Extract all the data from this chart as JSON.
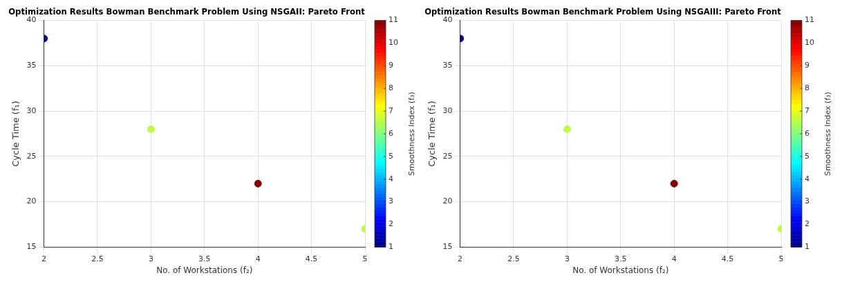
{
  "chart_data": [
    {
      "type": "scatter",
      "title": "Optimization Results Bowman Benchmark Problem Using NSGAII: Pareto Front",
      "xlabel": "No. of Workstations (f₂)",
      "ylabel": "Cycle Time (f₁)",
      "clabel": "Smoothness Index (f₃)",
      "x": [
        2,
        3,
        4,
        5
      ],
      "values": [
        38,
        28,
        22,
        17
      ],
      "cvalues": [
        1,
        6.6,
        11,
        6.6
      ],
      "xlim": [
        2,
        5
      ],
      "xticks": [
        2,
        2.5,
        3,
        3.5,
        4,
        4.5,
        5
      ],
      "ylim": [
        15,
        40
      ],
      "yticks": [
        15,
        20,
        25,
        30,
        35,
        40
      ],
      "clim": [
        1,
        11
      ],
      "cticks": [
        1,
        2,
        3,
        4,
        5,
        6,
        7,
        8,
        9,
        10,
        11
      ],
      "grid": true,
      "marker": "circle"
    },
    {
      "type": "scatter",
      "title": "Optimization Results Bowman Benchmark Problem Using NSGAIII: Pareto Front",
      "xlabel": "No. of Workstations (f₂)",
      "ylabel": "Cycle Time (f₁)",
      "clabel": "Smoothness Index (f₃)",
      "x": [
        2,
        3,
        4,
        5
      ],
      "values": [
        38,
        28,
        22,
        17
      ],
      "cvalues": [
        1,
        6.6,
        11,
        6.6
      ],
      "xlim": [
        2,
        5
      ],
      "xticks": [
        2,
        2.5,
        3,
        3.5,
        4,
        4.5,
        5
      ],
      "ylim": [
        15,
        40
      ],
      "yticks": [
        15,
        20,
        25,
        30,
        35,
        40
      ],
      "clim": [
        1,
        11
      ],
      "cticks": [
        1,
        2,
        3,
        4,
        5,
        6,
        7,
        8,
        9,
        10,
        11
      ],
      "grid": true,
      "marker": "circle"
    }
  ]
}
